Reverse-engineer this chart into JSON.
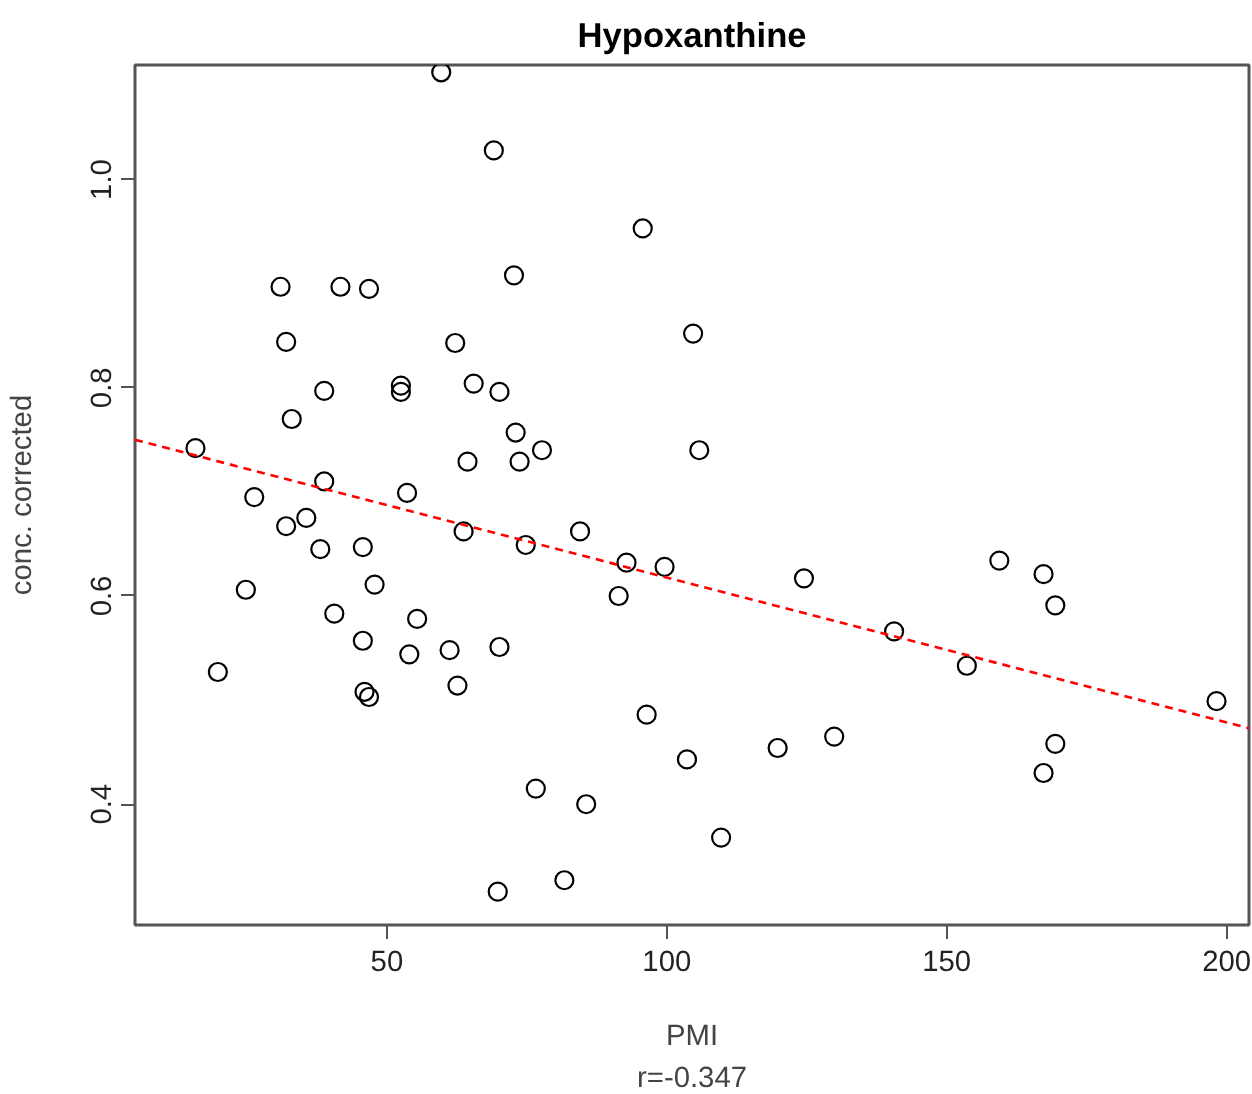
{
  "chart_data": {
    "type": "scatter",
    "title": "Hypoxanthine",
    "xlabel": "PMI",
    "ylabel": "conc. corrected",
    "annotations": [
      "r=-0.347"
    ],
    "xlim": [
      5,
      204
    ],
    "ylim": [
      0.284,
      1.11
    ],
    "xticks": [
      50,
      100,
      150,
      200
    ],
    "yticks": [
      0.4,
      0.6,
      0.8,
      {
        "value": 1.0,
        "label": "1.0"
      }
    ],
    "grid": false,
    "series": [
      {
        "color": "#000000",
        "marker": "circle",
        "x": [
          15.8,
          19.8,
          24.8,
          26.3,
          31,
          32,
          32,
          33,
          35.6,
          38.1,
          38.8,
          38.8,
          40.6,
          41.7,
          45.7,
          45.7,
          46,
          46.8,
          46.8,
          47.8,
          52.5,
          52.5,
          53.6,
          54,
          55.4,
          59.7,
          61.2,
          62.2,
          62.6,
          63.7,
          64.4,
          65.5,
          69.1,
          69.8,
          70.1,
          70.1,
          72.7,
          73.0,
          73.7,
          74.8,
          76.6,
          77.7,
          81.7,
          84.5,
          85.6,
          91.4,
          92.8,
          95.7,
          96.4,
          99.6,
          103.6,
          104.7,
          105.8,
          109.7,
          119.8,
          124.5,
          129.9,
          140.6,
          153.6,
          159.4,
          167.3,
          167.3,
          169.4,
          169.4,
          198.2
        ],
        "values": [
          0.742,
          0.527,
          0.606,
          0.695,
          0.897,
          0.844,
          0.667,
          0.77,
          0.675,
          0.645,
          0.797,
          0.71,
          0.583,
          0.897,
          0.557,
          0.647,
          0.508,
          0.503,
          0.895,
          0.611,
          0.802,
          0.796,
          0.699,
          0.544,
          0.578,
          1.103,
          0.548,
          0.843,
          0.514,
          0.662,
          0.729,
          0.804,
          1.028,
          0.316,
          0.551,
          0.796,
          0.908,
          0.757,
          0.729,
          0.649,
          0.415,
          0.74,
          0.327,
          0.662,
          0.4,
          0.6,
          0.632,
          0.953,
          0.486,
          0.628,
          0.443,
          0.852,
          0.74,
          0.368,
          0.454,
          0.617,
          0.465,
          0.566,
          0.533,
          0.634,
          0.621,
          0.43,
          0.591,
          0.458,
          0.499
        ]
      },
      {
        "type": "line",
        "color": "#ff0000",
        "line_style": "dashed",
        "marker": "none",
        "x": [
          5,
          204
        ],
        "values": [
          0.75,
          0.473
        ]
      }
    ]
  }
}
